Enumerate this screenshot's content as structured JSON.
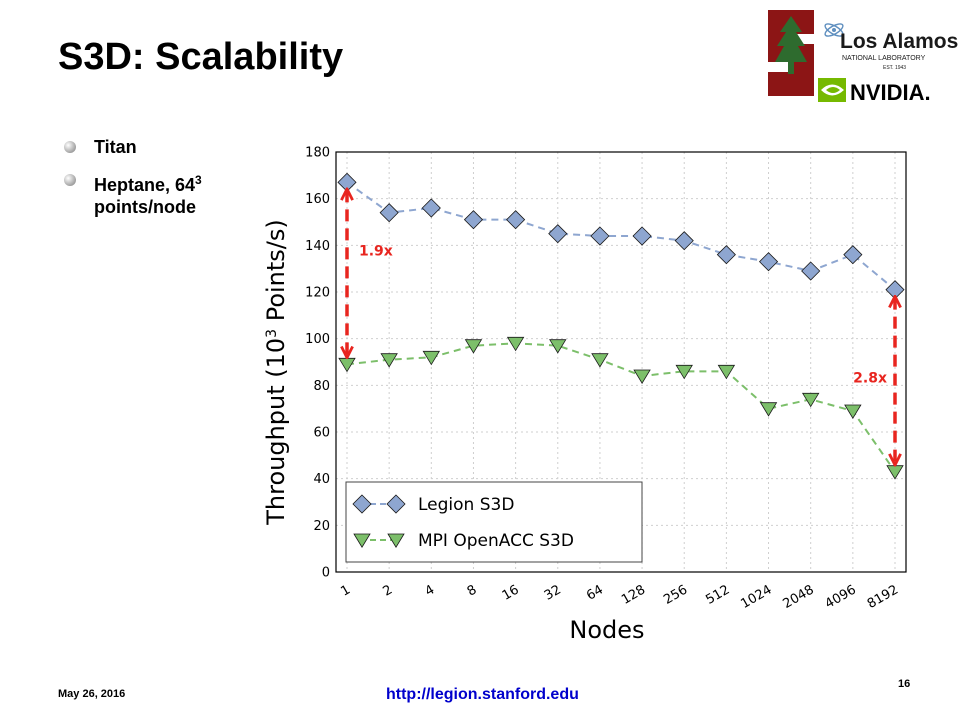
{
  "slide": {
    "title": "S3D: Scalability",
    "bullets": [
      {
        "text": "Titan"
      },
      {
        "text_before": "Heptane, 64",
        "superscript": "3",
        "text_after": " points/node"
      }
    ],
    "footer": {
      "date": "May 26, 2016",
      "url": "http://legion.stanford.edu",
      "page": "16"
    },
    "logos": {
      "lanl_line1": "Los Alamos",
      "lanl_line2": "NATIONAL LABORATORY",
      "lanl_line3": "EST. 1943",
      "nvidia": "NVIDIA."
    }
  },
  "chart_data": {
    "type": "line",
    "xlabel": "Nodes",
    "ylabel_before": "Throughput (10",
    "ylabel_sup": "3",
    "ylabel_after": " Points/s)",
    "categories": [
      "1",
      "2",
      "4",
      "8",
      "16",
      "32",
      "64",
      "128",
      "256",
      "512",
      "1024",
      "2048",
      "4096",
      "8192"
    ],
    "ylim": [
      0,
      180
    ],
    "yticks": [
      0,
      20,
      40,
      60,
      80,
      100,
      120,
      140,
      160,
      180
    ],
    "grid": true,
    "legend_position": "bottom-left",
    "series": [
      {
        "name": "Legion S3D",
        "marker": "diamond",
        "color": "#8ea6d0",
        "values": [
          167,
          154,
          156,
          151,
          151,
          145,
          144,
          144,
          142,
          136,
          133,
          129,
          136,
          121
        ]
      },
      {
        "name": "MPI OpenACC S3D",
        "marker": "triangle-down",
        "color": "#7cbf6a",
        "values": [
          89,
          91,
          92,
          97,
          98,
          97,
          91,
          84,
          86,
          86,
          70,
          74,
          69,
          43
        ]
      }
    ],
    "annotations": [
      {
        "text": "1.9x",
        "category_index": 0,
        "from": 167,
        "to": 89
      },
      {
        "text": "2.8x",
        "category_index": 13,
        "from": 121,
        "to": 43
      }
    ]
  }
}
